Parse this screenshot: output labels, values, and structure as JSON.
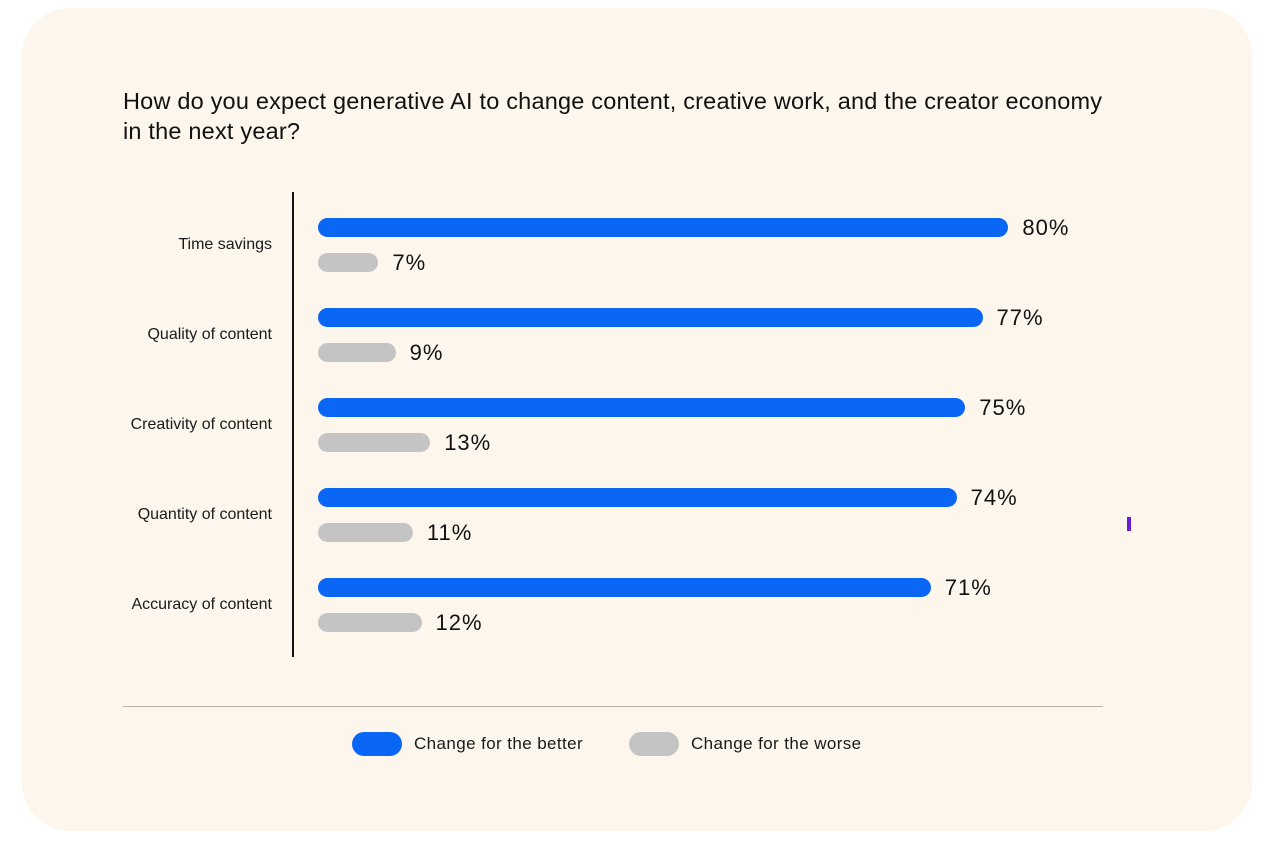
{
  "colors": {
    "better": "#0a66f5",
    "worse": "#c4c4c4",
    "background": "#fcf6ec",
    "marker": "#6a1bd6"
  },
  "chart_data": {
    "type": "bar",
    "orientation": "horizontal",
    "title": "How do you expect generative AI to change content, creative work, and the creator economy in the next year?",
    "categories": [
      "Time savings",
      "Quality of content",
      "Creativity of content",
      "Quantity of content",
      "Accuracy of content"
    ],
    "series": [
      {
        "name": "Change for the better",
        "values": [
          80,
          77,
          75,
          74,
          71
        ],
        "labels": [
          "80%",
          "77%",
          "75%",
          "74%",
          "71%"
        ]
      },
      {
        "name": "Change for the worse",
        "values": [
          7,
          9,
          13,
          11,
          12
        ],
        "labels": [
          "7%",
          "9%",
          "13%",
          "11%",
          "12%"
        ]
      }
    ],
    "value_unit": "%",
    "xlim": [
      0,
      100
    ],
    "grid": false,
    "legend_position": "bottom"
  }
}
